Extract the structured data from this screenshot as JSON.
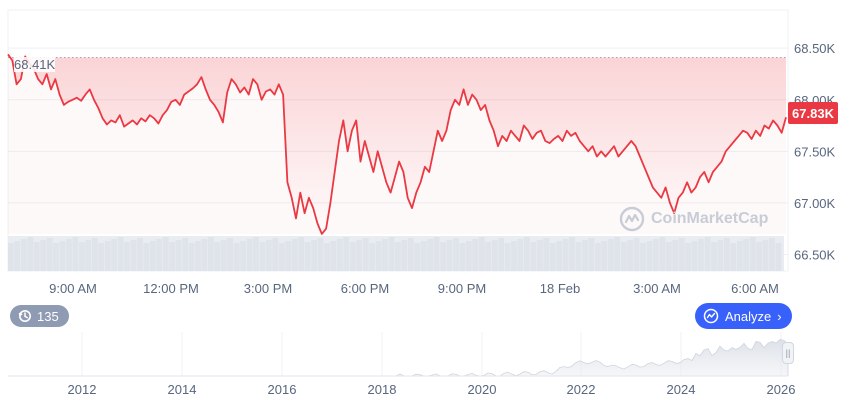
{
  "chart_data": [
    {
      "type": "line",
      "y_ticks": [
        "68.50K",
        "68.00K",
        "67.50K",
        "67.00K",
        "66.50K"
      ],
      "y_values": [
        68500,
        68000,
        67500,
        67000,
        66500
      ],
      "ylim": [
        66340,
        68870
      ],
      "x_ticks": [
        "9:00 AM",
        "12:00 PM",
        "3:00 PM",
        "6:00 PM",
        "9:00 PM",
        "18 Feb",
        "3:00 AM",
        "6:00 AM"
      ],
      "start_reference": {
        "label": "68.41K",
        "value": 68410
      },
      "current_price": {
        "label": "67.83K",
        "value": 67830,
        "color": "#ea3943"
      },
      "line_color": "#ea3943",
      "grid": true,
      "series": [
        {
          "values": [
            68440,
            68380,
            68150,
            68200,
            68420,
            68350,
            68300,
            68200,
            68150,
            68250,
            68100,
            68200,
            68050,
            67950,
            67980,
            68000,
            68020,
            67990,
            68050,
            68100,
            68000,
            67920,
            67820,
            67760,
            67800,
            67780,
            67850,
            67740,
            67770,
            67800,
            67760,
            67820,
            67790,
            67850,
            67820,
            67770,
            67850,
            67900,
            67980,
            68000,
            67950,
            68050,
            68080,
            68110,
            68150,
            68220,
            68100,
            68000,
            67950,
            67880,
            67780,
            68070,
            68200,
            68150,
            68070,
            68120,
            68050,
            68200,
            68150,
            68000,
            68080,
            68100,
            68050,
            68150,
            68050,
            67200,
            67050,
            66850,
            67100,
            66900,
            67050,
            66950,
            66800,
            66700,
            66750,
            67000,
            67300,
            67600,
            67800,
            67500,
            67700,
            67800,
            67400,
            67600,
            67450,
            67300,
            67500,
            67350,
            67200,
            67100,
            67250,
            67400,
            67300,
            67050,
            66950,
            67100,
            67200,
            67350,
            67300,
            67500,
            67700,
            67600,
            67700,
            67900,
            68000,
            67950,
            68100,
            67950,
            68050,
            68000,
            67900,
            67950,
            67800,
            67700,
            67550,
            67650,
            67600,
            67700,
            67650,
            67600,
            67750,
            67700,
            67620,
            67680,
            67700,
            67600,
            67580,
            67620,
            67650,
            67600,
            67700,
            67650,
            67680,
            67600,
            67550,
            67500,
            67550,
            67450,
            67500,
            67450,
            67500,
            67550,
            67450,
            67500,
            67550,
            67600,
            67550,
            67450,
            67350,
            67250,
            67150,
            67100,
            67050,
            67150,
            67000,
            66900,
            67050,
            67100,
            67200,
            67100,
            67150,
            67250,
            67300,
            67200,
            67300,
            67350,
            67400,
            67500,
            67550,
            67600,
            67650,
            67700,
            67680,
            67620,
            67700,
            67650,
            67750,
            67720,
            67800,
            67750,
            67680,
            67830
          ]
        }
      ]
    },
    {
      "type": "area",
      "x_ticks": [
        "2012",
        "2014",
        "2016",
        "2018",
        "2020",
        "2022",
        "2024",
        "2026"
      ]
    }
  ],
  "controls": {
    "history_count": "135",
    "analyze_label": "Analyze",
    "watermark_text": "CoinMarketCap"
  }
}
